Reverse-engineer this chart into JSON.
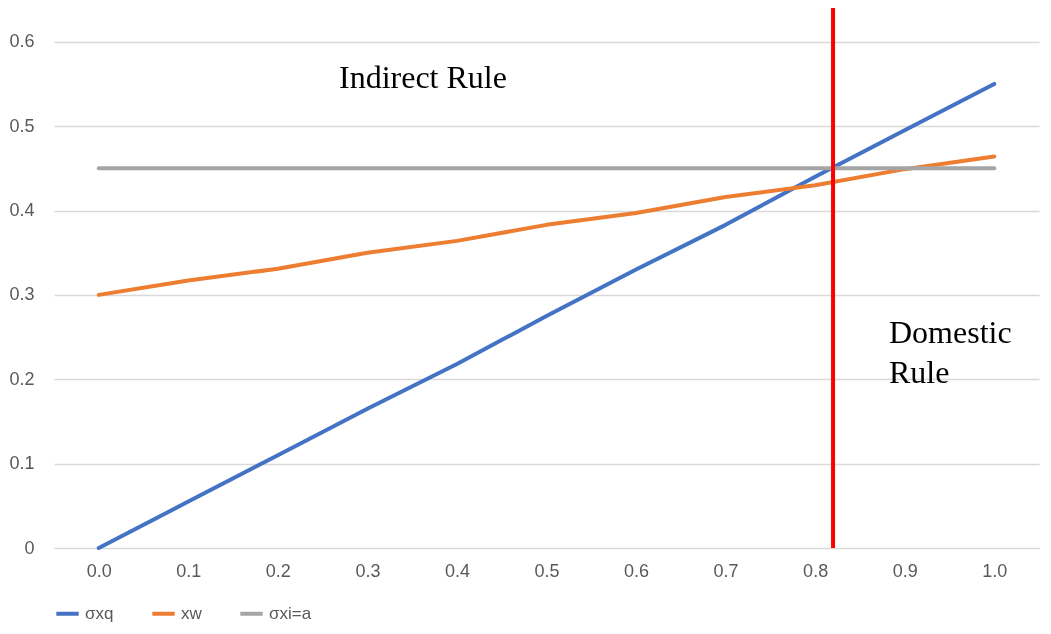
{
  "chart_data": {
    "type": "line",
    "x": [
      0,
      0.1,
      0.2,
      0.3,
      0.4,
      0.5,
      0.6,
      0.7,
      0.8,
      0.9,
      1
    ],
    "series": [
      {
        "name": "σxq",
        "color": "#4472c4",
        "values": [
          0,
          0.055,
          0.11,
          0.165,
          0.218,
          0.275,
          0.33,
          0.383,
          0.44,
          0.495,
          0.55
        ]
      },
      {
        "name": "xw",
        "color": "#ed7d31",
        "values": [
          0.3,
          0.317,
          0.331,
          0.35,
          0.364,
          0.383,
          0.397,
          0.416,
          0.43,
          0.449,
          0.464
        ]
      },
      {
        "name": "σxi=a",
        "color": "#a5a5a5",
        "values": [
          0.45,
          0.45,
          0.45,
          0.45,
          0.45,
          0.45,
          0.45,
          0.45,
          0.45,
          0.45,
          0.45
        ]
      }
    ],
    "xlim": [
      -0.05,
      1.05
    ],
    "xticks": [
      {
        "value": 0,
        "label": "0.0"
      },
      {
        "value": 0.1,
        "label": "0.1"
      },
      {
        "value": 0.2,
        "label": "0.2"
      },
      {
        "value": 0.3,
        "label": "0.3"
      },
      {
        "value": 0.4,
        "label": "0.4"
      },
      {
        "value": 0.5,
        "label": "0.5"
      },
      {
        "value": 0.6,
        "label": "0.6"
      },
      {
        "value": 0.7,
        "label": "0.7"
      },
      {
        "value": 0.8,
        "label": "0.8"
      },
      {
        "value": 0.9,
        "label": "0.9"
      },
      {
        "value": 1,
        "label": "1.0"
      }
    ],
    "ylim": [
      0,
      0.64
    ],
    "yticks": [
      0,
      0.1,
      0.2,
      0.3,
      0.4,
      0.5,
      0.6
    ],
    "ref_lines": [
      {
        "axis": "x",
        "value": 0.82,
        "color": "#ff0000"
      }
    ],
    "annotations": [
      "Indirect Rule",
      "Domestic Rule"
    ],
    "grid": "y",
    "legend": "bottom",
    "marker": "none",
    "line_style": "solid"
  }
}
